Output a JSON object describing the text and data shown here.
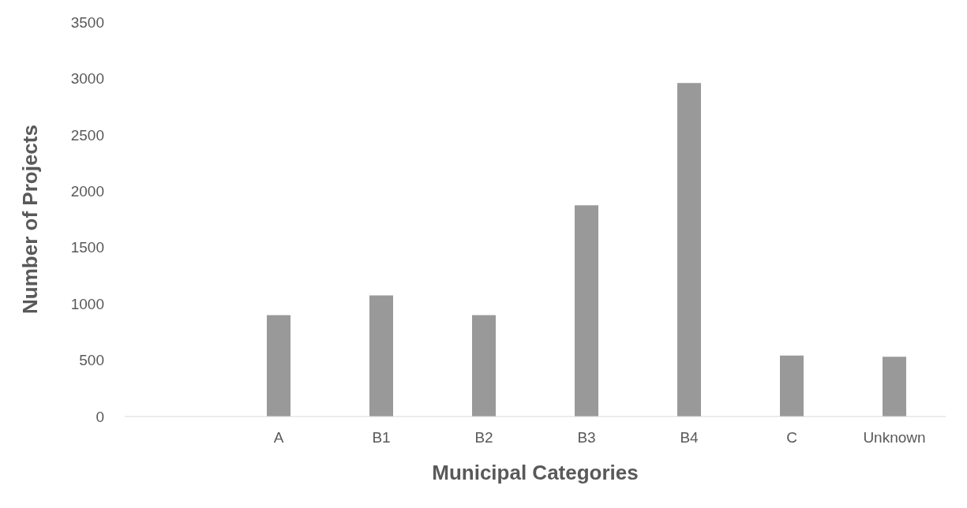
{
  "chart_data": {
    "type": "bar",
    "xlabel": "Municipal Categories",
    "ylabel": "Number of Projects",
    "categories": [
      null,
      "A",
      "B1",
      "B2",
      "B3",
      "B4",
      "C",
      "Unknown"
    ],
    "values": [
      null,
      900,
      1075,
      900,
      1875,
      2960,
      540,
      530
    ],
    "color": "#999999",
    "ylim": [
      0,
      3500
    ],
    "yticks": [
      0,
      500,
      1000,
      1500,
      2000,
      2500,
      3000,
      3500
    ],
    "grid": false
  }
}
